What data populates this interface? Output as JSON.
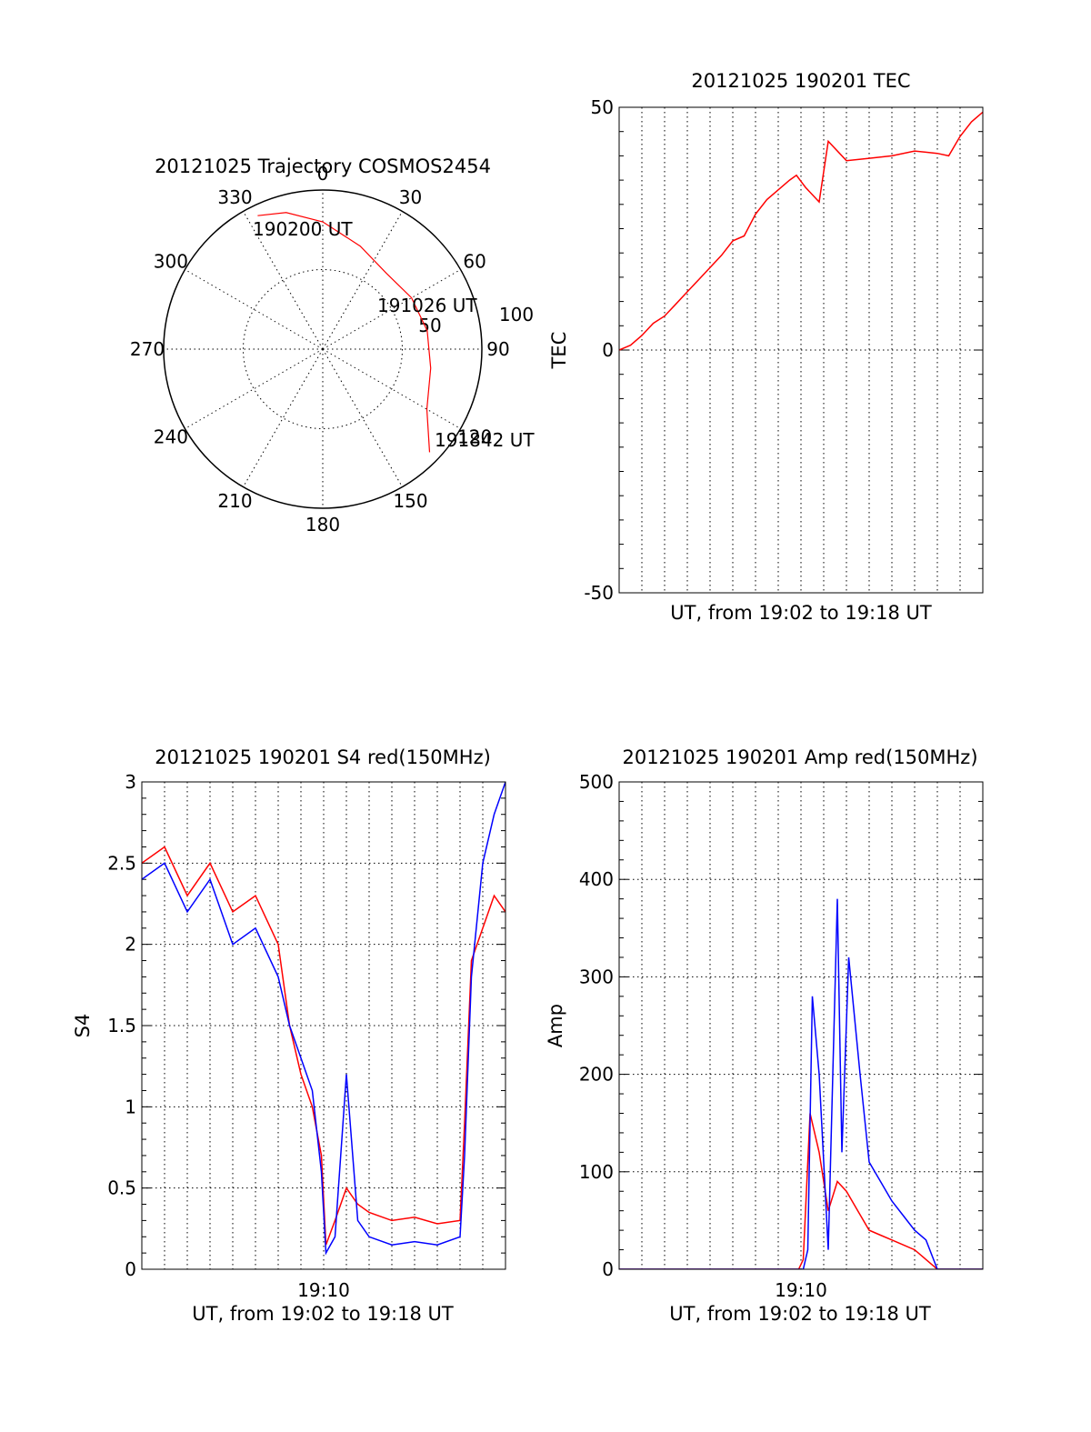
{
  "chart_data": [
    {
      "type": "polar-trajectory",
      "title": "20121025 Trajectory COSMOS2454",
      "azimuth_labels": [
        "0",
        "30",
        "60",
        "90",
        "120",
        "150",
        "180",
        "210",
        "240",
        "270",
        "300",
        "330"
      ],
      "radial_labels": [
        "50",
        "100"
      ],
      "grid": true,
      "series": [
        {
          "color": "#ff0000",
          "points_az_zd": [
            [
              334,
              84
            ],
            [
              345,
              80
            ],
            [
              0,
              72
            ],
            [
              20,
              62
            ],
            [
              40,
              56
            ],
            [
              60,
              58
            ],
            [
              80,
              60
            ],
            [
              100,
              62
            ],
            [
              120,
              68
            ],
            [
              134,
              84
            ]
          ]
        }
      ],
      "annotations": [
        "190200 UT",
        "191026 UT",
        "191842 UT"
      ]
    },
    {
      "type": "line",
      "title": "20121025 190201 TEC",
      "xlabel": "UT, from 19:02 to 19:18 UT",
      "ylabel": "TEC",
      "xlim": [
        0,
        16
      ],
      "ylim": [
        -50,
        50
      ],
      "yticks": [
        "-50",
        "0",
        "50"
      ],
      "grid": true,
      "series": [
        {
          "color": "#ff0000",
          "x": [
            0,
            0.5,
            1,
            1.5,
            2,
            2.5,
            3,
            3.5,
            4,
            4.5,
            5,
            5.5,
            6,
            6.5,
            7,
            7.5,
            7.8,
            8.2,
            8.8,
            9.2,
            10,
            11,
            12,
            13,
            14,
            14.5,
            15,
            15.5,
            16
          ],
          "y": [
            0,
            1,
            3,
            5.5,
            7,
            9.5,
            12,
            14.5,
            17,
            19.5,
            22.5,
            23.5,
            28,
            31,
            33,
            35,
            36,
            33.5,
            30.5,
            43,
            39,
            39.5,
            40,
            41,
            40.5,
            40,
            44,
            47,
            49
          ]
        }
      ]
    },
    {
      "type": "line",
      "title": "20121025 190201 S4 red(150MHz)",
      "xlabel": "UT, from 19:02 to 19:18 UT",
      "ylabel": "S4",
      "xlim": [
        0,
        16
      ],
      "ylim": [
        0,
        3
      ],
      "xticks": [
        "19:10"
      ],
      "yticks": [
        "0",
        "0.5",
        "1",
        "1.5",
        "2",
        "2.5",
        "3"
      ],
      "grid": true,
      "series": [
        {
          "color": "#ff0000",
          "x": [
            0,
            1,
            2,
            3,
            4,
            5,
            6,
            6.5,
            7,
            7.5,
            7.9,
            8.1,
            8.5,
            9,
            9.5,
            10,
            11,
            12,
            13,
            14,
            14.2,
            14.5,
            15,
            15.5,
            16
          ],
          "y": [
            2.5,
            2.6,
            2.3,
            2.5,
            2.2,
            2.3,
            2.0,
            1.5,
            1.2,
            1.0,
            0.7,
            0.15,
            0.3,
            0.5,
            0.4,
            0.35,
            0.3,
            0.32,
            0.28,
            0.3,
            0.9,
            1.9,
            2.1,
            2.3,
            2.2
          ]
        },
        {
          "color": "#0000ff",
          "x": [
            0,
            1,
            2,
            3,
            4,
            5,
            6,
            6.5,
            7,
            7.5,
            7.9,
            8.1,
            8.5,
            9,
            9.5,
            10,
            11,
            12,
            13,
            14,
            14.2,
            14.5,
            15,
            15.5,
            16
          ],
          "y": [
            2.4,
            2.5,
            2.2,
            2.4,
            2.0,
            2.1,
            1.8,
            1.5,
            1.3,
            1.1,
            0.6,
            0.1,
            0.2,
            1.2,
            0.3,
            0.2,
            0.15,
            0.17,
            0.15,
            0.2,
            0.7,
            1.8,
            2.5,
            2.8,
            3.0
          ]
        }
      ]
    },
    {
      "type": "line",
      "title": "20121025 190201 Amp red(150MHz)",
      "xlabel": "UT, from 19:02 to 19:18 UT",
      "ylabel": "Amp",
      "xlim": [
        0,
        16
      ],
      "ylim": [
        0,
        500
      ],
      "xticks": [
        "19:10"
      ],
      "yticks": [
        "0",
        "100",
        "200",
        "300",
        "400",
        "500"
      ],
      "grid": true,
      "series": [
        {
          "color": "#ff0000",
          "x": [
            0,
            7.9,
            8.1,
            8.4,
            8.8,
            9.2,
            9.6,
            10,
            10.5,
            11,
            11.5,
            12,
            12.5,
            13,
            13.5,
            14,
            16
          ],
          "y": [
            0,
            0,
            10,
            160,
            120,
            60,
            90,
            80,
            60,
            40,
            35,
            30,
            25,
            20,
            10,
            0,
            0
          ]
        },
        {
          "color": "#0000ff",
          "x": [
            0,
            8.1,
            8.3,
            8.5,
            8.8,
            9.2,
            9.6,
            9.8,
            10.1,
            10.6,
            11,
            11.5,
            12,
            12.5,
            13,
            13.5,
            14,
            16
          ],
          "y": [
            0,
            0,
            20,
            280,
            200,
            20,
            380,
            120,
            320,
            200,
            110,
            90,
            70,
            55,
            40,
            30,
            0,
            0
          ]
        }
      ]
    }
  ]
}
